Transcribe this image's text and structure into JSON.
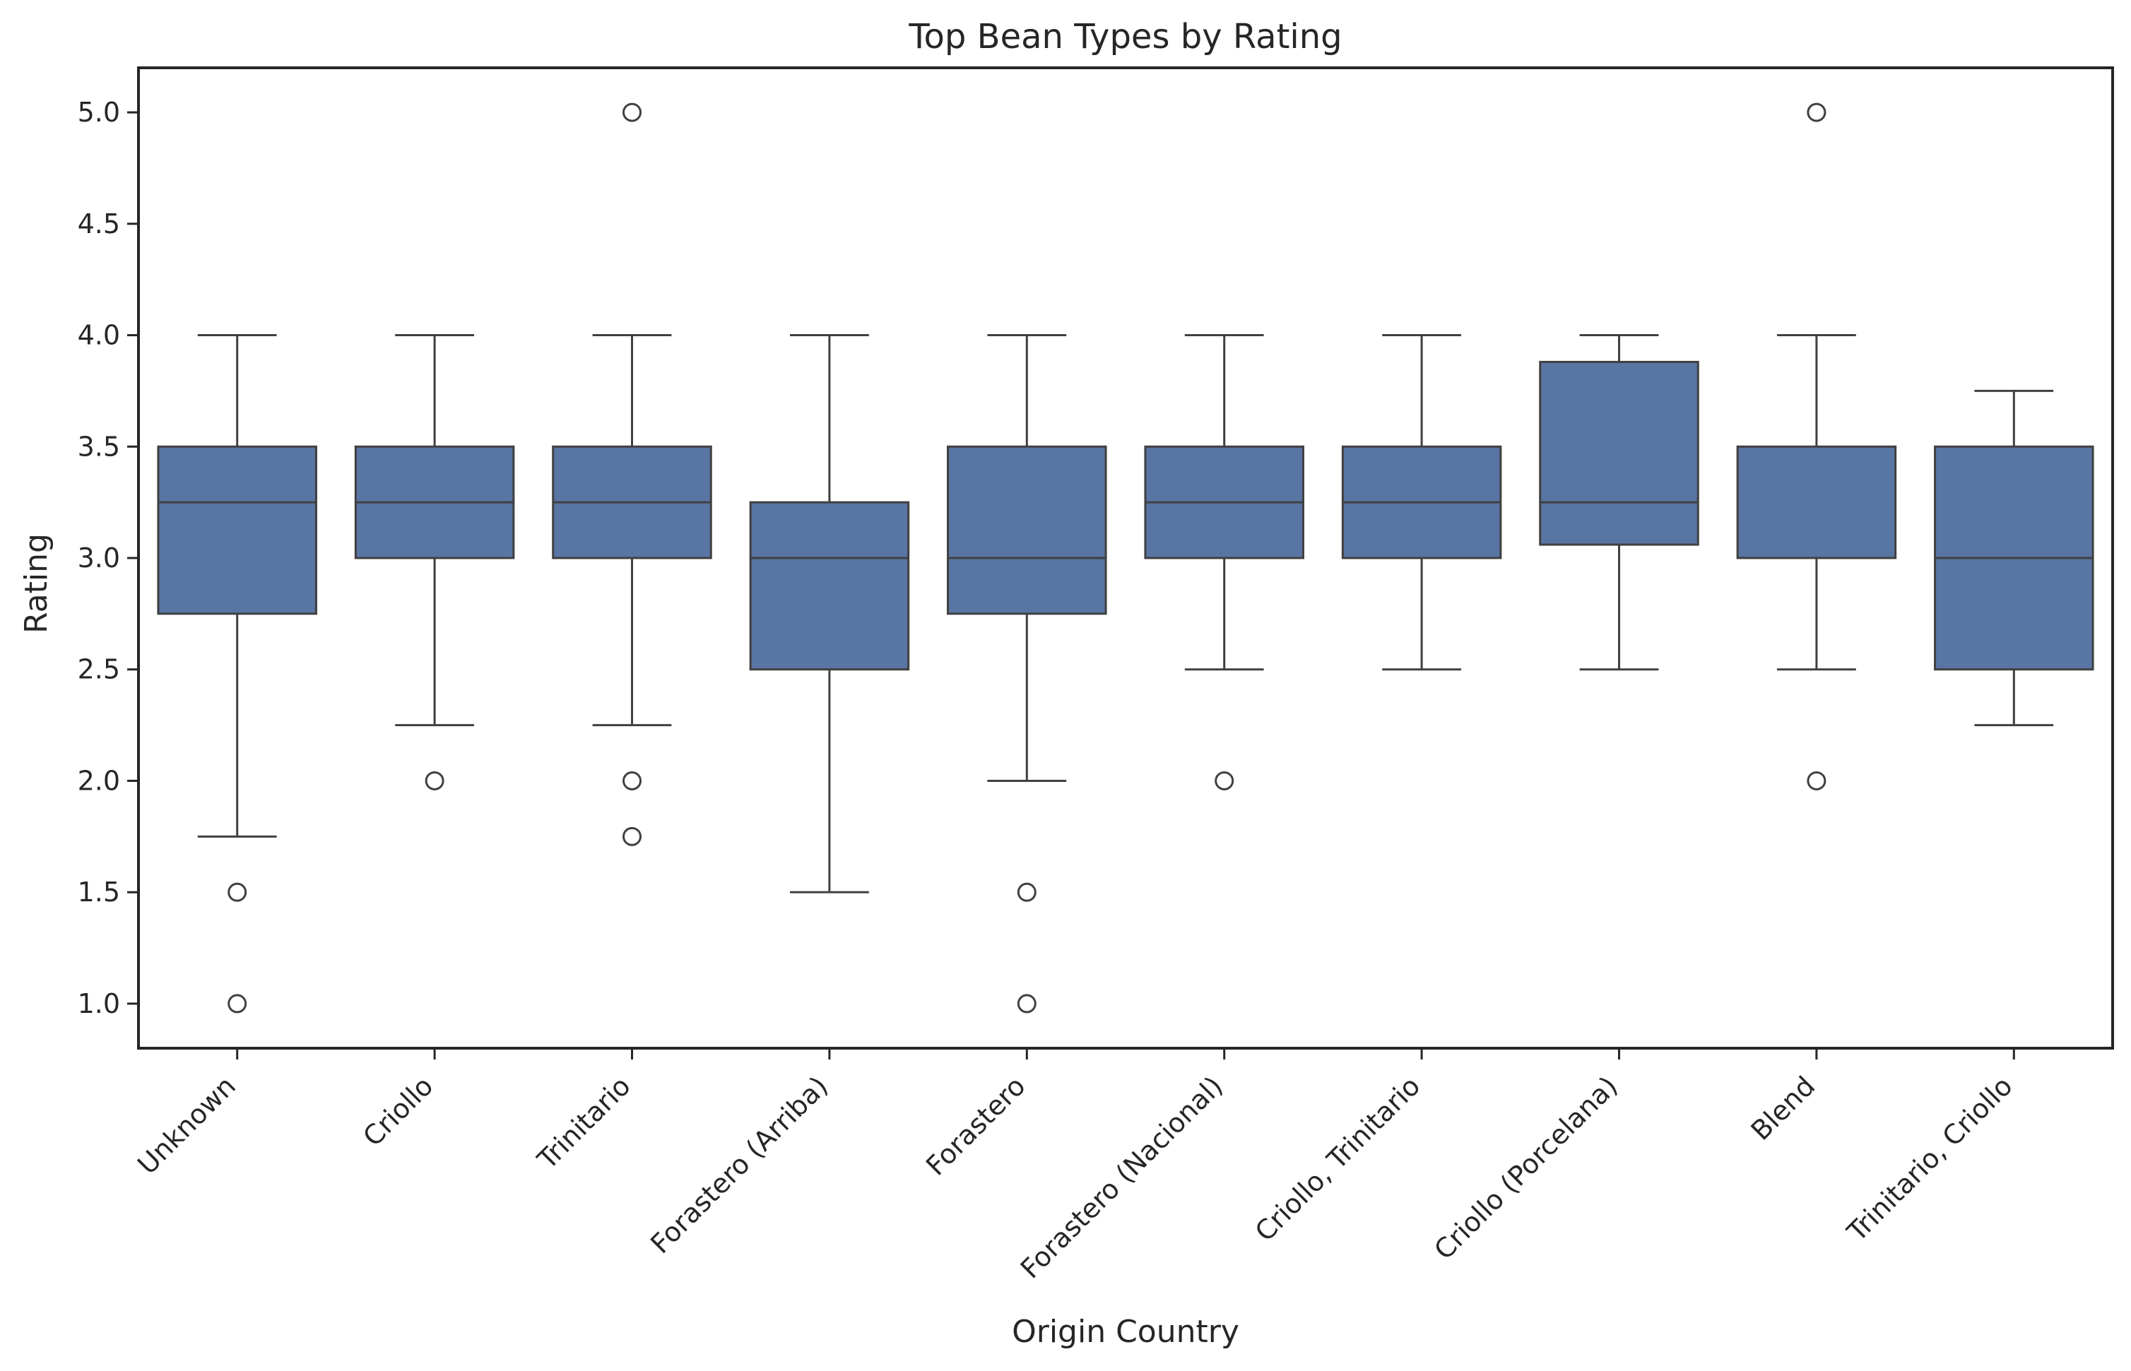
{
  "chart_data": {
    "type": "box",
    "title": "Top Bean Types by Rating",
    "xlabel": "Origin Country",
    "ylabel": "Rating",
    "ylim": [
      0.8,
      5.2
    ],
    "yticks": [
      "1.0",
      "1.5",
      "2.0",
      "2.5",
      "3.0",
      "3.5",
      "4.0",
      "4.5",
      "5.0"
    ],
    "grid": false,
    "box_color": "#5875a4",
    "line_color": "#404040",
    "categories": [
      "Unknown",
      "Criollo",
      "Trinitario",
      "Forastero (Arriba)",
      "Forastero",
      "Forastero (Nacional)",
      "Criollo, Trinitario",
      "Criollo (Porcelana)",
      "Blend",
      "Trinitario, Criollo"
    ],
    "boxes": [
      {
        "whisker_low": 1.75,
        "q1": 2.75,
        "median": 3.25,
        "q3": 3.5,
        "whisker_high": 4.0,
        "outliers": [
          1.5,
          1.0
        ]
      },
      {
        "whisker_low": 2.25,
        "q1": 3.0,
        "median": 3.25,
        "q3": 3.5,
        "whisker_high": 4.0,
        "outliers": [
          2.0
        ]
      },
      {
        "whisker_low": 2.25,
        "q1": 3.0,
        "median": 3.25,
        "q3": 3.5,
        "whisker_high": 4.0,
        "outliers": [
          5.0,
          2.0,
          1.75
        ]
      },
      {
        "whisker_low": 1.5,
        "q1": 2.5,
        "median": 3.0,
        "q3": 3.25,
        "whisker_high": 4.0,
        "outliers": []
      },
      {
        "whisker_low": 2.0,
        "q1": 2.75,
        "median": 3.0,
        "q3": 3.5,
        "whisker_high": 4.0,
        "outliers": [
          1.5,
          1.0
        ]
      },
      {
        "whisker_low": 2.5,
        "q1": 3.0,
        "median": 3.25,
        "q3": 3.5,
        "whisker_high": 4.0,
        "outliers": [
          2.0
        ]
      },
      {
        "whisker_low": 2.5,
        "q1": 3.0,
        "median": 3.25,
        "q3": 3.5,
        "whisker_high": 4.0,
        "outliers": []
      },
      {
        "whisker_low": 2.5,
        "q1": 3.06,
        "median": 3.25,
        "q3": 3.88,
        "whisker_high": 4.0,
        "outliers": []
      },
      {
        "whisker_low": 2.5,
        "q1": 3.0,
        "median": 3.0,
        "q3": 3.5,
        "whisker_high": 4.0,
        "outliers": [
          5.0,
          2.0
        ]
      },
      {
        "whisker_low": 2.25,
        "q1": 2.5,
        "median": 3.0,
        "q3": 3.5,
        "whisker_high": 3.75,
        "outliers": []
      }
    ]
  }
}
